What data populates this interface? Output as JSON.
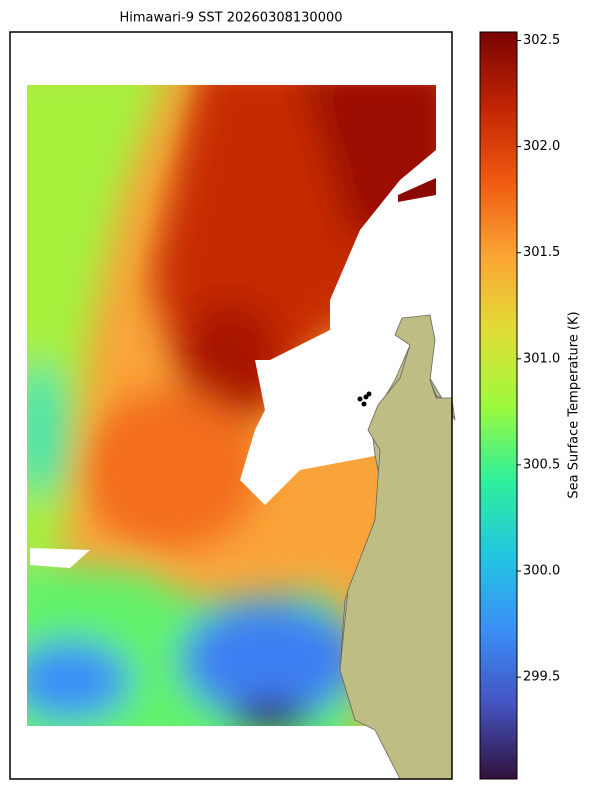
{
  "title": "Himawari-9 SST 20260308130000",
  "colorbar": {
    "label": "Sea Surface Temperature (K)",
    "lim": [
      299.02,
      302.54
    ],
    "ticks": [
      {
        "value": 302.5,
        "label": "302.5"
      },
      {
        "value": 302,
        "label": "302.0"
      },
      301.5,
      {
        "value": 301,
        "label": "301.0"
      },
      300.5,
      {
        "value": 300,
        "label": "300.0"
      },
      299.5
    ]
  }
}
